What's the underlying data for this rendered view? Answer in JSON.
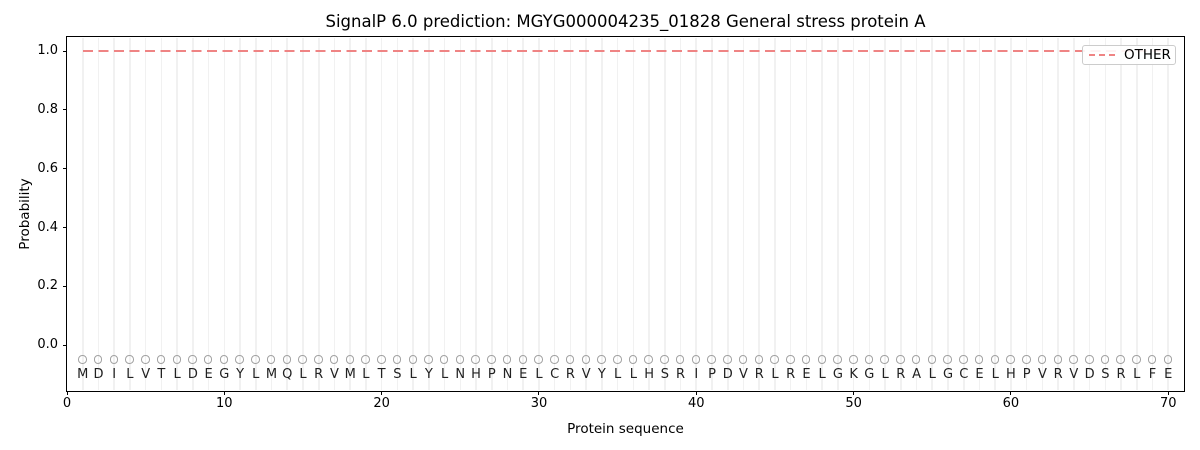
{
  "chart_data": {
    "type": "line",
    "title": "SignalP 6.0 prediction: MGYG000004235_01828 General stress protein A",
    "xlabel": "Protein sequence",
    "ylabel": "Probability",
    "xlim": [
      0,
      71
    ],
    "ylim": [
      -0.156,
      1.048
    ],
    "x_ticks": [
      0,
      10,
      20,
      30,
      40,
      50,
      60,
      70
    ],
    "y_ticks": [
      0.0,
      0.2,
      0.4,
      0.6,
      0.8,
      1.0
    ],
    "y_tick_labels": [
      "0.0",
      "0.2",
      "0.4",
      "0.6",
      "0.8",
      "1.0"
    ],
    "grid": {
      "vertical_per_residue": true,
      "horizontal": false,
      "color": "#f1f1f1"
    },
    "sequence": "MDILVTLDEGYLMQLRVMLTSLYLNHPNELCRVYLLHSRIPDVRLRELGKGLRALGCELHPVRVDSRLFE",
    "sequence_length": 70,
    "residue_marker": {
      "shape": "open-circle",
      "y": -0.05,
      "color": "#a2a2a2"
    },
    "residue_letter_y": -0.1,
    "series": [
      {
        "name": "OTHER",
        "color": "#ef8484",
        "linestyle": "dashed",
        "y_value": 1.0,
        "x_start": 1,
        "x_end": 70
      }
    ],
    "legend": {
      "position": "upper right",
      "entries": [
        {
          "label": "OTHER",
          "color": "#ef8484",
          "linestyle": "dashed"
        }
      ]
    }
  }
}
